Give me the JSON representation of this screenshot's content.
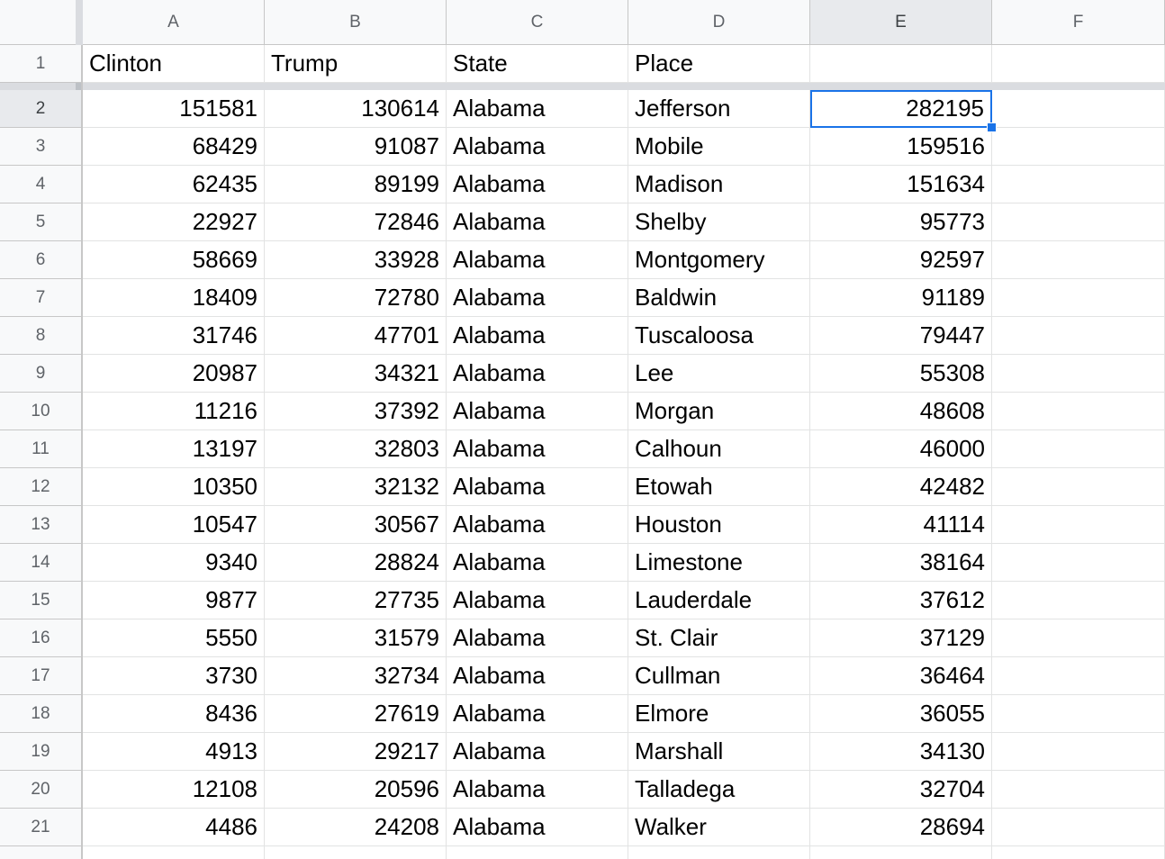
{
  "columns": [
    "A",
    "B",
    "C",
    "D",
    "E",
    "F"
  ],
  "selected_column": "E",
  "header_row": {
    "row_number": "1",
    "cells": [
      "Clinton",
      "Trump",
      "State",
      "Place",
      ""
    ]
  },
  "selected_row": "2",
  "rows": [
    {
      "n": "2",
      "clinton": "151581",
      "trump": "130614",
      "state": "Alabama",
      "place": "Jefferson",
      "total": "282195"
    },
    {
      "n": "3",
      "clinton": "68429",
      "trump": "91087",
      "state": "Alabama",
      "place": "Mobile",
      "total": "159516"
    },
    {
      "n": "4",
      "clinton": "62435",
      "trump": "89199",
      "state": "Alabama",
      "place": "Madison",
      "total": "151634"
    },
    {
      "n": "5",
      "clinton": "22927",
      "trump": "72846",
      "state": "Alabama",
      "place": "Shelby",
      "total": "95773"
    },
    {
      "n": "6",
      "clinton": "58669",
      "trump": "33928",
      "state": "Alabama",
      "place": "Montgomery",
      "total": "92597"
    },
    {
      "n": "7",
      "clinton": "18409",
      "trump": "72780",
      "state": "Alabama",
      "place": "Baldwin",
      "total": "91189"
    },
    {
      "n": "8",
      "clinton": "31746",
      "trump": "47701",
      "state": "Alabama",
      "place": "Tuscaloosa",
      "total": "79447"
    },
    {
      "n": "9",
      "clinton": "20987",
      "trump": "34321",
      "state": "Alabama",
      "place": "Lee",
      "total": "55308"
    },
    {
      "n": "10",
      "clinton": "11216",
      "trump": "37392",
      "state": "Alabama",
      "place": "Morgan",
      "total": "48608"
    },
    {
      "n": "11",
      "clinton": "13197",
      "trump": "32803",
      "state": "Alabama",
      "place": "Calhoun",
      "total": "46000"
    },
    {
      "n": "12",
      "clinton": "10350",
      "trump": "32132",
      "state": "Alabama",
      "place": "Etowah",
      "total": "42482"
    },
    {
      "n": "13",
      "clinton": "10547",
      "trump": "30567",
      "state": "Alabama",
      "place": "Houston",
      "total": "41114"
    },
    {
      "n": "14",
      "clinton": "9340",
      "trump": "28824",
      "state": "Alabama",
      "place": "Limestone",
      "total": "38164"
    },
    {
      "n": "15",
      "clinton": "9877",
      "trump": "27735",
      "state": "Alabama",
      "place": "Lauderdale",
      "total": "37612"
    },
    {
      "n": "16",
      "clinton": "5550",
      "trump": "31579",
      "state": "Alabama",
      "place": "St. Clair",
      "total": "37129"
    },
    {
      "n": "17",
      "clinton": "3730",
      "trump": "32734",
      "state": "Alabama",
      "place": "Cullman",
      "total": "36464"
    },
    {
      "n": "18",
      "clinton": "8436",
      "trump": "27619",
      "state": "Alabama",
      "place": "Elmore",
      "total": "36055"
    },
    {
      "n": "19",
      "clinton": "4913",
      "trump": "29217",
      "state": "Alabama",
      "place": "Marshall",
      "total": "34130"
    },
    {
      "n": "20",
      "clinton": "12108",
      "trump": "20596",
      "state": "Alabama",
      "place": "Talladega",
      "total": "32704"
    },
    {
      "n": "21",
      "clinton": "4486",
      "trump": "24208",
      "state": "Alabama",
      "place": "Walker",
      "total": "28694"
    }
  ],
  "colors": {
    "selection": "#1a73e8",
    "header_bg": "#f8f9fa",
    "header_selected_bg": "#e8eaed",
    "freeze_bar": "#dadce0"
  }
}
